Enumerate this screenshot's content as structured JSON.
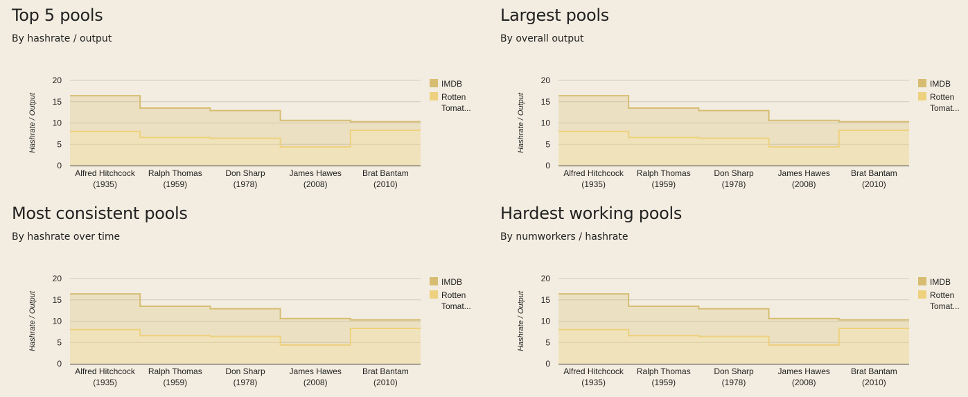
{
  "colors": {
    "background": "#f3ede1",
    "imdb": "#d6bd72",
    "rotten": "#edd17f",
    "gridline": "#cfc9bb"
  },
  "chart_data": [
    {
      "type": "area",
      "step": true,
      "title": "Top 5 pools",
      "subtitle": "By hashrate / output",
      "ylabel": "Hashrate / Output",
      "ylim": [
        0,
        20
      ],
      "yticks": [
        0,
        5,
        10,
        15,
        20
      ],
      "categories": [
        {
          "name": "Alfred Hitchcock",
          "year": "(1935)"
        },
        {
          "name": "Ralph Thomas",
          "year": "(1959)"
        },
        {
          "name": "Don Sharp",
          "year": "(1978)"
        },
        {
          "name": "James Hawes",
          "year": "(2008)"
        },
        {
          "name": "Brat Bantam",
          "year": "(2010)"
        }
      ],
      "series": [
        {
          "name": "IMDB",
          "legend": [
            "IMDB"
          ],
          "values": [
            8.4,
            6.9,
            6.5,
            6.2,
            2.0
          ]
        },
        {
          "name": "Rotten Tomat...",
          "legend": [
            "Rotten",
            "Tomat..."
          ],
          "values": [
            8.0,
            6.6,
            6.4,
            4.4,
            8.3
          ]
        }
      ],
      "legend_position": "right"
    },
    {
      "type": "area",
      "step": true,
      "title": "Largest pools",
      "subtitle": "By overall output",
      "ylabel": "Hashrate / Output",
      "ylim": [
        0,
        20
      ],
      "yticks": [
        0,
        5,
        10,
        15,
        20
      ],
      "categories": [
        {
          "name": "Alfred Hitchcock",
          "year": "(1935)"
        },
        {
          "name": "Ralph Thomas",
          "year": "(1959)"
        },
        {
          "name": "Don Sharp",
          "year": "(1978)"
        },
        {
          "name": "James Hawes",
          "year": "(2008)"
        },
        {
          "name": "Brat Bantam",
          "year": "(2010)"
        }
      ],
      "series": [
        {
          "name": "IMDB",
          "legend": [
            "IMDB"
          ],
          "values": [
            8.4,
            6.9,
            6.5,
            6.2,
            2.0
          ]
        },
        {
          "name": "Rotten Tomat...",
          "legend": [
            "Rotten",
            "Tomat..."
          ],
          "values": [
            8.0,
            6.6,
            6.4,
            4.4,
            8.3
          ]
        }
      ],
      "legend_position": "right"
    },
    {
      "type": "area",
      "step": true,
      "title": "Most consistent pools",
      "subtitle": "By hashrate over time",
      "ylabel": "Hashrate / Output",
      "ylim": [
        0,
        20
      ],
      "yticks": [
        0,
        5,
        10,
        15,
        20
      ],
      "categories": [
        {
          "name": "Alfred Hitchcock",
          "year": "(1935)"
        },
        {
          "name": "Ralph Thomas",
          "year": "(1959)"
        },
        {
          "name": "Don Sharp",
          "year": "(1978)"
        },
        {
          "name": "James Hawes",
          "year": "(2008)"
        },
        {
          "name": "Brat Bantam",
          "year": "(2010)"
        }
      ],
      "series": [
        {
          "name": "IMDB",
          "legend": [
            "IMDB"
          ],
          "values": [
            8.4,
            6.9,
            6.5,
            6.2,
            2.0
          ]
        },
        {
          "name": "Rotten Tomat...",
          "legend": [
            "Rotten",
            "Tomat..."
          ],
          "values": [
            8.0,
            6.6,
            6.4,
            4.4,
            8.3
          ]
        }
      ],
      "legend_position": "right"
    },
    {
      "type": "area",
      "step": true,
      "title": "Hardest working pools",
      "subtitle": "By numworkers / hashrate",
      "ylabel": "Hashrate / Output",
      "ylim": [
        0,
        20
      ],
      "yticks": [
        0,
        5,
        10,
        15,
        20
      ],
      "categories": [
        {
          "name": "Alfred Hitchcock",
          "year": "(1935)"
        },
        {
          "name": "Ralph Thomas",
          "year": "(1959)"
        },
        {
          "name": "Don Sharp",
          "year": "(1978)"
        },
        {
          "name": "James Hawes",
          "year": "(2008)"
        },
        {
          "name": "Brat Bantam",
          "year": "(2010)"
        }
      ],
      "series": [
        {
          "name": "IMDB",
          "legend": [
            "IMDB"
          ],
          "values": [
            8.4,
            6.9,
            6.5,
            6.2,
            2.0
          ]
        },
        {
          "name": "Rotten Tomat...",
          "legend": [
            "Rotten",
            "Tomat..."
          ],
          "values": [
            8.0,
            6.6,
            6.4,
            4.4,
            8.3
          ]
        }
      ],
      "legend_position": "right"
    }
  ]
}
